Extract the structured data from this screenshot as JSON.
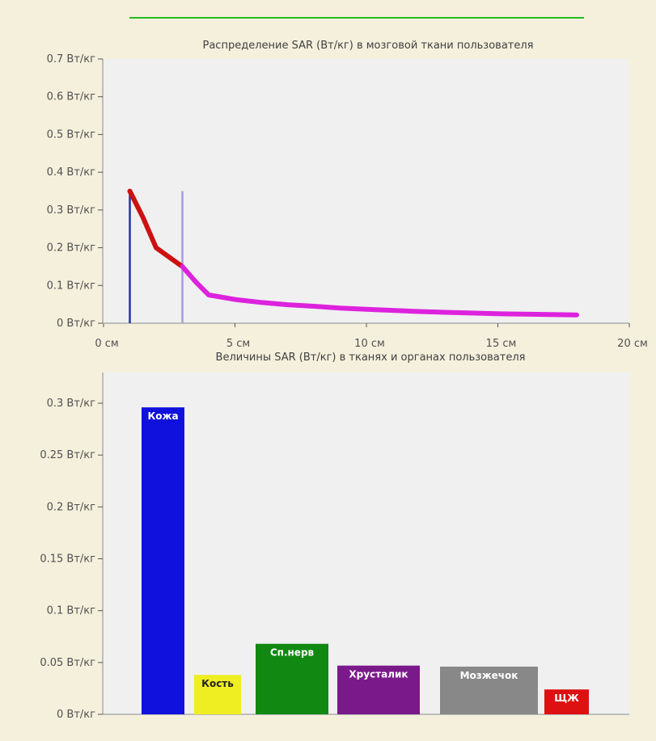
{
  "chart_data": [
    {
      "type": "line",
      "title": "Распределение SAR (Вт/кг) в мозговой ткани пользователя",
      "xlim": [
        0,
        20
      ],
      "ylim": [
        0,
        0.7
      ],
      "x_ticks": [
        {
          "value": 0,
          "label": "0 см"
        },
        {
          "value": 5,
          "label": "5 см"
        },
        {
          "value": 10,
          "label": "10 см"
        },
        {
          "value": 15,
          "label": "15 см"
        },
        {
          "value": 20,
          "label": "20 см"
        }
      ],
      "y_ticks": [
        {
          "value": 0,
          "label": "0 Вт/кг"
        },
        {
          "value": 0.1,
          "label": "0.1 Вт/кг"
        },
        {
          "value": 0.2,
          "label": "0.2 Вт/кг"
        },
        {
          "value": 0.3,
          "label": "0.3 Вт/кг"
        },
        {
          "value": 0.4,
          "label": "0.4 Вт/кг"
        },
        {
          "value": 0.5,
          "label": "0.5 Вт/кг"
        },
        {
          "value": 0.6,
          "label": "0.6 Вт/кг"
        },
        {
          "value": 0.7,
          "label": "0.7 Вт/кг"
        }
      ],
      "series": [
        {
          "color": "#cc1111",
          "x": [
            1.0,
            1.5,
            2.0,
            2.5,
            3.0
          ],
          "y": [
            0.35,
            0.28,
            0.2,
            0.175,
            0.15
          ]
        },
        {
          "color": "#dd22dd",
          "x": [
            3.0,
            3.5,
            4.0,
            5.0,
            6.0,
            7.0,
            8.0,
            9.0,
            10.0,
            11.0,
            12.0,
            13.0,
            14.0,
            15.0,
            16.0,
            17.0,
            18.0
          ],
          "y": [
            0.15,
            0.11,
            0.075,
            0.063,
            0.055,
            0.049,
            0.045,
            0.04,
            0.037,
            0.034,
            0.031,
            0.029,
            0.027,
            0.025,
            0.024,
            0.023,
            0.022
          ]
        }
      ],
      "markers": [
        {
          "x": 1.0,
          "y": 0.35,
          "color": "#2233aa"
        },
        {
          "x": 3.0,
          "y": 0.35,
          "color": "#aa99dd"
        }
      ],
      "top_line_color": "#22bb22",
      "plot_bg": "#f0f0f0",
      "grid": false
    },
    {
      "type": "bar",
      "title": "Величины SAR (Вт/кг) в тканях и органах пользователя",
      "ylim": [
        0,
        0.3
      ],
      "y_ticks": [
        {
          "value": 0,
          "label": "0 Вт/кг"
        },
        {
          "value": 0.05,
          "label": "0.05 Вт/кг"
        },
        {
          "value": 0.1,
          "label": "0.1 Вт/кг"
        },
        {
          "value": 0.15,
          "label": "0.15 Вт/кг"
        },
        {
          "value": 0.2,
          "label": "0.2 Вт/кг"
        },
        {
          "value": 0.25,
          "label": "0.25 Вт/кг"
        },
        {
          "value": 0.3,
          "label": "0.3 Вт/кг"
        }
      ],
      "bars": [
        {
          "label": "Кожа",
          "value": 0.296,
          "color": "#1111dd",
          "text_color": "#ffffff"
        },
        {
          "label": "Кость",
          "value": 0.038,
          "color": "#eeee22",
          "text_color": "#222222"
        },
        {
          "label": "Сп.нерв",
          "value": 0.068,
          "color": "#118811",
          "text_color": "#ffffff"
        },
        {
          "label": "Хрусталик",
          "value": 0.047,
          "color": "#7a1a8a",
          "text_color": "#ffffff"
        },
        {
          "label": "Мозжечок",
          "value": 0.046,
          "color": "#888888",
          "text_color": "#ffffff"
        },
        {
          "label": "ЩЖ",
          "value": 0.024,
          "color": "#dd1111",
          "text_color": "#ffffff"
        }
      ],
      "plot_bg": "#f0f0f0",
      "grid": false
    }
  ]
}
